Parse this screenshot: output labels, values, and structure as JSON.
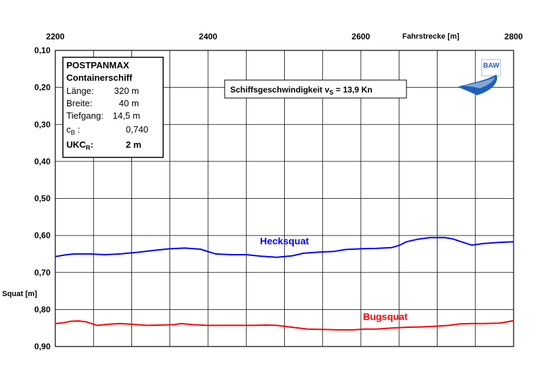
{
  "chart_data": {
    "type": "line",
    "x_axis": {
      "label": "Fahrstrecke [m]",
      "range": [
        2200,
        2800
      ],
      "major_ticks": [
        2200,
        2400,
        2600,
        2800
      ],
      "major_tick_labels": [
        "2200",
        "2400",
        "2600",
        "2800"
      ],
      "gridline_step": 50,
      "position": "top"
    },
    "y_axis": {
      "label": "Squat [m]",
      "range": [
        0.1,
        0.9
      ],
      "inverted": true,
      "ticks": [
        0.1,
        0.2,
        0.3,
        0.4,
        0.5,
        0.6,
        0.7,
        0.8,
        0.9
      ],
      "tick_labels": [
        "0,10",
        "0,20",
        "0,30",
        "0,40",
        "0,50",
        "0,60",
        "0,70",
        "0,80",
        "0,90"
      ]
    },
    "grid": true,
    "series": [
      {
        "name": "Hecksquat",
        "color": "#0000ff",
        "points": [
          [
            2200,
            0.657
          ],
          [
            2215,
            0.652
          ],
          [
            2225,
            0.65
          ],
          [
            2245,
            0.65
          ],
          [
            2265,
            0.652
          ],
          [
            2285,
            0.65
          ],
          [
            2310,
            0.645
          ],
          [
            2330,
            0.64
          ],
          [
            2350,
            0.636
          ],
          [
            2370,
            0.634
          ],
          [
            2390,
            0.637
          ],
          [
            2410,
            0.65
          ],
          [
            2430,
            0.652
          ],
          [
            2450,
            0.652
          ],
          [
            2470,
            0.656
          ],
          [
            2490,
            0.659
          ],
          [
            2510,
            0.655
          ],
          [
            2525,
            0.648
          ],
          [
            2545,
            0.645
          ],
          [
            2565,
            0.643
          ],
          [
            2580,
            0.638
          ],
          [
            2600,
            0.636
          ],
          [
            2620,
            0.635
          ],
          [
            2640,
            0.633
          ],
          [
            2650,
            0.627
          ],
          [
            2660,
            0.617
          ],
          [
            2675,
            0.61
          ],
          [
            2690,
            0.606
          ],
          [
            2710,
            0.606
          ],
          [
            2720,
            0.609
          ],
          [
            2733,
            0.618
          ],
          [
            2745,
            0.626
          ],
          [
            2760,
            0.622
          ],
          [
            2780,
            0.619
          ],
          [
            2800,
            0.617
          ]
        ]
      },
      {
        "name": "Bugsquat",
        "color": "#ff0000",
        "points": [
          [
            2200,
            0.838
          ],
          [
            2210,
            0.836
          ],
          [
            2220,
            0.832
          ],
          [
            2230,
            0.831
          ],
          [
            2240,
            0.833
          ],
          [
            2255,
            0.843
          ],
          [
            2270,
            0.84
          ],
          [
            2285,
            0.838
          ],
          [
            2300,
            0.84
          ],
          [
            2320,
            0.843
          ],
          [
            2340,
            0.842
          ],
          [
            2355,
            0.841
          ],
          [
            2365,
            0.838
          ],
          [
            2380,
            0.841
          ],
          [
            2400,
            0.843
          ],
          [
            2420,
            0.843
          ],
          [
            2440,
            0.843
          ],
          [
            2460,
            0.843
          ],
          [
            2475,
            0.842
          ],
          [
            2490,
            0.843
          ],
          [
            2510,
            0.848
          ],
          [
            2530,
            0.853
          ],
          [
            2550,
            0.854
          ],
          [
            2570,
            0.855
          ],
          [
            2590,
            0.855
          ],
          [
            2605,
            0.853
          ],
          [
            2620,
            0.853
          ],
          [
            2640,
            0.85
          ],
          [
            2660,
            0.848
          ],
          [
            2680,
            0.847
          ],
          [
            2700,
            0.845
          ],
          [
            2715,
            0.843
          ],
          [
            2730,
            0.839
          ],
          [
            2745,
            0.838
          ],
          [
            2760,
            0.838
          ],
          [
            2780,
            0.837
          ],
          [
            2790,
            0.834
          ],
          [
            2800,
            0.83
          ]
        ]
      }
    ],
    "annotations": [
      {
        "text": "Hecksquat",
        "x": 2500,
        "y": 0.624,
        "color": "#0000ff"
      },
      {
        "text": "Bugsquat",
        "x": 2632,
        "y": 0.828,
        "color": "#ff0000"
      }
    ]
  },
  "speed_box": {
    "text_main": "Schiffsgeschwindigkeit v",
    "text_sub": "S",
    "text_end": " = 13,9 Kn"
  },
  "ship_info": {
    "type": "POSTPANMAX",
    "class": "Containerschiff",
    "rows": [
      {
        "label": "Länge:",
        "value": "320 m"
      },
      {
        "label": "Breite:",
        "value": "40 m"
      },
      {
        "label": "Tiefgang:",
        "value": "14,5 m"
      }
    ],
    "cb_label": "c",
    "cb_sub": "B",
    "cb_colon": " :",
    "cb_value": "0,740",
    "ukc_label": "UKC",
    "ukc_sub": "R",
    "ukc_colon": ":",
    "ukc_value": "2 m"
  },
  "logo": {
    "text": "BAW",
    "color": "#1f5fb8"
  }
}
